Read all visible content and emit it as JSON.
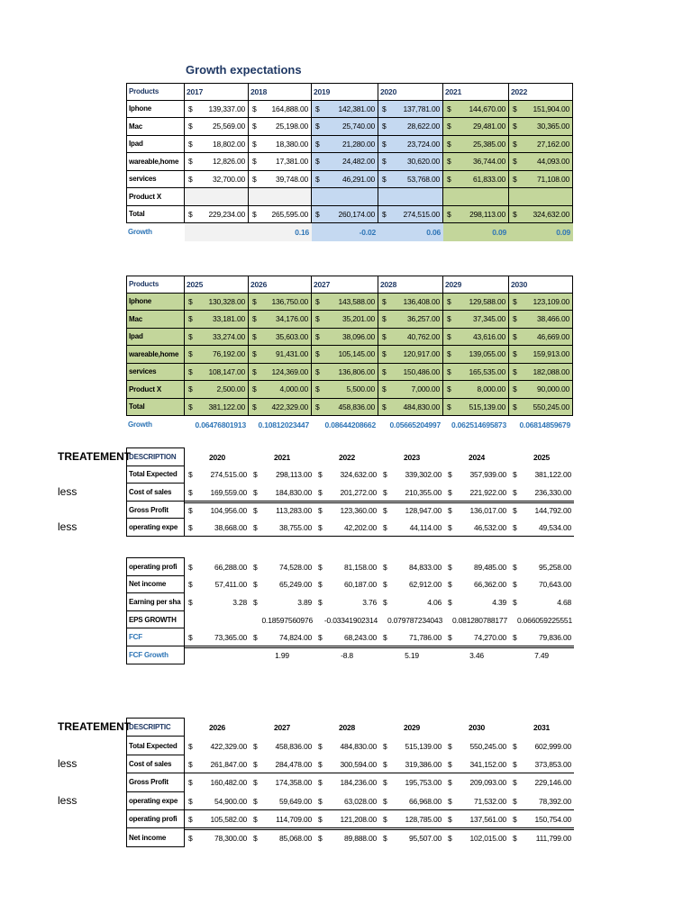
{
  "tables": [
    {
      "title": "Growth expectations",
      "header": [
        "Products",
        "2017",
        "2018",
        "2019",
        "2020",
        "2021",
        "2022"
      ],
      "rows": [
        {
          "label": "Iphone",
          "cells": [
            [
              "$",
              "139,337.00"
            ],
            [
              "$",
              "164,888.00"
            ],
            [
              "$",
              "142,381.00"
            ],
            [
              "$",
              "137,781.00"
            ],
            [
              "$",
              "144,670.00"
            ],
            [
              "$",
              "151,904.00"
            ]
          ]
        },
        {
          "label": "Mac",
          "cells": [
            [
              "$",
              "25,569.00"
            ],
            [
              "$",
              "25,198.00"
            ],
            [
              "$",
              "25,740.00"
            ],
            [
              "$",
              "28,622.00"
            ],
            [
              "$",
              "29,481.00"
            ],
            [
              "$",
              "30,365.00"
            ]
          ]
        },
        {
          "label": "Ipad",
          "cells": [
            [
              "$",
              "18,802.00"
            ],
            [
              "$",
              "18,380.00"
            ],
            [
              "$",
              "21,280.00"
            ],
            [
              "$",
              "23,724.00"
            ],
            [
              "$",
              "25,385.00"
            ],
            [
              "$",
              "27,162.00"
            ]
          ]
        },
        {
          "label": "wareable,home",
          "cells": [
            [
              "$",
              "12,826.00"
            ],
            [
              "$",
              "17,381.00"
            ],
            [
              "$",
              "24,482.00"
            ],
            [
              "$",
              "30,620.00"
            ],
            [
              "$",
              "36,744.00"
            ],
            [
              "$",
              "44,093.00"
            ]
          ]
        },
        {
          "label": "services",
          "cells": [
            [
              "$",
              "32,700.00"
            ],
            [
              "$",
              "39,748.00"
            ],
            [
              "$",
              "46,291.00"
            ],
            [
              "$",
              "53,768.00"
            ],
            [
              "$",
              "61,833.00"
            ],
            [
              "$",
              "71,108.00"
            ]
          ]
        },
        {
          "label": "Product X",
          "cells": [
            null,
            null,
            null,
            null,
            null,
            null
          ]
        },
        {
          "label": "Total",
          "cells": [
            [
              "$",
              "229,234.00"
            ],
            [
              "$",
              "265,595.00"
            ],
            [
              "$",
              "260,174.00"
            ],
            [
              "$",
              "274,515.00"
            ],
            [
              "$",
              "298,113.00"
            ],
            [
              "$",
              "324,632.00"
            ]
          ]
        },
        {
          "label": "Growth",
          "cells": [
            null,
            "0.16",
            "-0.02",
            "0.06",
            "0.09",
            "0.09"
          ]
        }
      ]
    },
    {
      "header": [
        "Products",
        "2025",
        "2026",
        "2027",
        "2028",
        "2029",
        "2030"
      ],
      "rows": [
        {
          "label": "Iphone",
          "cells": [
            [
              "$",
              "130,328.00"
            ],
            [
              "$",
              "136,750.00"
            ],
            [
              "$",
              "143,588.00"
            ],
            [
              "$",
              "136,408.00"
            ],
            [
              "$",
              "129,588.00"
            ],
            [
              "$",
              "123,109.00"
            ]
          ]
        },
        {
          "label": "Mac",
          "cells": [
            [
              "$",
              "33,181.00"
            ],
            [
              "$",
              "34,176.00"
            ],
            [
              "$",
              "35,201.00"
            ],
            [
              "$",
              "36,257.00"
            ],
            [
              "$",
              "37,345.00"
            ],
            [
              "$",
              "38,466.00"
            ]
          ]
        },
        {
          "label": "Ipad",
          "cells": [
            [
              "$",
              "33,274.00"
            ],
            [
              "$",
              "35,603.00"
            ],
            [
              "$",
              "38,096.00"
            ],
            [
              "$",
              "40,762.00"
            ],
            [
              "$",
              "43,616.00"
            ],
            [
              "$",
              "46,669.00"
            ]
          ]
        },
        {
          "label": "wareable,home",
          "cells": [
            [
              "$",
              "76,192.00"
            ],
            [
              "$",
              "91,431.00"
            ],
            [
              "$",
              "105,145.00"
            ],
            [
              "$",
              "120,917.00"
            ],
            [
              "$",
              "139,055.00"
            ],
            [
              "$",
              "159,913.00"
            ]
          ]
        },
        {
          "label": "services",
          "cells": [
            [
              "$",
              "108,147.00"
            ],
            [
              "$",
              "124,369.00"
            ],
            [
              "$",
              "136,806.00"
            ],
            [
              "$",
              "150,486.00"
            ],
            [
              "$",
              "165,535.00"
            ],
            [
              "$",
              "182,088.00"
            ]
          ]
        },
        {
          "label": "Product X",
          "cells": [
            [
              "$",
              "2,500.00"
            ],
            [
              "$",
              "4,000.00"
            ],
            [
              "$",
              "5,500.00"
            ],
            [
              "$",
              "7,000.00"
            ],
            [
              "$",
              "8,000.00"
            ],
            [
              "$",
              "90,000.00"
            ]
          ]
        },
        {
          "label": "Total",
          "cells": [
            [
              "$",
              "381,122.00"
            ],
            [
              "$",
              "422,329.00"
            ],
            [
              "$",
              "458,836.00"
            ],
            [
              "$",
              "484,830.00"
            ],
            [
              "$",
              "515,139.00"
            ],
            [
              "$",
              "550,245.00"
            ]
          ]
        },
        {
          "label": "Growth",
          "cells": [
            "0.06476801913",
            "0.10812023447",
            "0.08644208662",
            "0.05665204997",
            "0.062514695873",
            "0.06814859679"
          ]
        }
      ]
    },
    {
      "notes": [
        "TREATEMENT",
        "less",
        "less"
      ],
      "header": [
        "DESCRIPTION",
        "2020",
        "2021",
        "2022",
        "2023",
        "2024",
        "2025"
      ],
      "rows": [
        {
          "label": "Total Expected",
          "cells": [
            [
              "$",
              "274,515.00"
            ],
            [
              "$",
              "298,113.00"
            ],
            [
              "$",
              "324,632.00"
            ],
            [
              "$",
              "339,302.00"
            ],
            [
              "$",
              "357,939.00"
            ],
            [
              "$",
              "381,122.00"
            ]
          ]
        },
        {
          "label": "Cost of sales",
          "cells": [
            [
              "$",
              "169,559.00"
            ],
            [
              "$",
              "184,830.00"
            ],
            [
              "$",
              "201,272.00"
            ],
            [
              "$",
              "210,355.00"
            ],
            [
              "$",
              "221,922.00"
            ],
            [
              "$",
              "236,330.00"
            ]
          ]
        },
        {
          "label": "Gross Profit",
          "cells": [
            [
              "$",
              "104,956.00"
            ],
            [
              "$",
              "113,283.00"
            ],
            [
              "$",
              "123,360.00"
            ],
            [
              "$",
              "128,947.00"
            ],
            [
              "$",
              "136,017.00"
            ],
            [
              "$",
              "144,792.00"
            ]
          ]
        },
        {
          "label": "operating expe",
          "cells": [
            [
              "$",
              "38,668.00"
            ],
            [
              "$",
              "38,755.00"
            ],
            [
              "$",
              "42,202.00"
            ],
            [
              "$",
              "44,114.00"
            ],
            [
              "$",
              "46,532.00"
            ],
            [
              "$",
              "49,534.00"
            ]
          ]
        },
        {
          "label": "operating profi",
          "cells": [
            [
              "$",
              "66,288.00"
            ],
            [
              "$",
              "74,528.00"
            ],
            [
              "$",
              "81,158.00"
            ],
            [
              "$",
              "84,833.00"
            ],
            [
              "$",
              "89,485.00"
            ],
            [
              "$",
              "95,258.00"
            ]
          ]
        },
        {
          "label": "Net income",
          "cells": [
            [
              "$",
              "57,411.00"
            ],
            [
              "$",
              "65,249.00"
            ],
            [
              "$",
              "60,187.00"
            ],
            [
              "$",
              "62,912.00"
            ],
            [
              "$",
              "66,362.00"
            ],
            [
              "$",
              "70,643.00"
            ]
          ]
        },
        {
          "label": "Earning per sha",
          "cells": [
            [
              "$",
              "3.28"
            ],
            [
              "$",
              "3.89"
            ],
            [
              "$",
              "3.76"
            ],
            [
              "$",
              "4.06"
            ],
            [
              "$",
              "4.39"
            ],
            [
              "$",
              "4.68"
            ]
          ]
        },
        {
          "label": "EPS GROWTH",
          "cells": [
            null,
            "0.18597560976",
            "-0.03341902314",
            "0.079787234043",
            "0.081280788177",
            "0.066059225551"
          ]
        },
        {
          "label": "FCF",
          "cells": [
            [
              "$",
              "73,365.00"
            ],
            [
              "$",
              "74,824.00"
            ],
            [
              "$",
              "68,243.00"
            ],
            [
              "$",
              "71,786.00"
            ],
            [
              "$",
              "74,270.00"
            ],
            [
              "$",
              "79,836.00"
            ]
          ]
        },
        {
          "label": "FCF  Growth",
          "cells": [
            null,
            "1.99",
            "-8.8",
            "5.19",
            "3.46",
            "7.49"
          ]
        }
      ]
    },
    {
      "notes": [
        "TREATEMENT",
        "less",
        "less"
      ],
      "header": [
        "DESCRIPTIC",
        "2026",
        "2027",
        "2028",
        "2029",
        "2030",
        "2031"
      ],
      "rows": [
        {
          "label": "Total Expected",
          "cells": [
            [
              "$",
              "422,329.00"
            ],
            [
              "$",
              "458,836.00"
            ],
            [
              "$",
              "484,830.00"
            ],
            [
              "$",
              "515,139.00"
            ],
            [
              "$",
              "550,245.00"
            ],
            [
              "$",
              "602,999.00"
            ]
          ]
        },
        {
          "label": "Cost of sales",
          "cells": [
            [
              "$",
              "261,847.00"
            ],
            [
              "$",
              "284,478.00"
            ],
            [
              "$",
              "300,594.00"
            ],
            [
              "$",
              "319,386.00"
            ],
            [
              "$",
              "341,152.00"
            ],
            [
              "$",
              "373,853.00"
            ]
          ]
        },
        {
          "label": "Gross Profit",
          "cells": [
            [
              "$",
              "160,482.00"
            ],
            [
              "$",
              "174,358.00"
            ],
            [
              "$",
              "184,236.00"
            ],
            [
              "$",
              "195,753.00"
            ],
            [
              "$",
              "209,093.00"
            ],
            [
              "$",
              "229,146.00"
            ]
          ]
        },
        {
          "label": "operating expe",
          "cells": [
            [
              "$",
              "54,900.00"
            ],
            [
              "$",
              "59,649.00"
            ],
            [
              "$",
              "63,028.00"
            ],
            [
              "$",
              "66,968.00"
            ],
            [
              "$",
              "71,532.00"
            ],
            [
              "$",
              "78,392.00"
            ]
          ]
        },
        {
          "label": "operating profi",
          "cells": [
            [
              "$",
              "105,582.00"
            ],
            [
              "$",
              "114,709.00"
            ],
            [
              "$",
              "121,208.00"
            ],
            [
              "$",
              "128,785.00"
            ],
            [
              "$",
              "137,561.00"
            ],
            [
              "$",
              "150,754.00"
            ]
          ]
        },
        {
          "label": "Net income",
          "cells": [
            [
              "$",
              "78,300.00"
            ],
            [
              "$",
              "85,068.00"
            ],
            [
              "$",
              "89,888.00"
            ],
            [
              "$",
              "95,507.00"
            ],
            [
              "$",
              "102,015.00"
            ],
            [
              "$",
              "111,799.00"
            ]
          ]
        }
      ]
    }
  ]
}
